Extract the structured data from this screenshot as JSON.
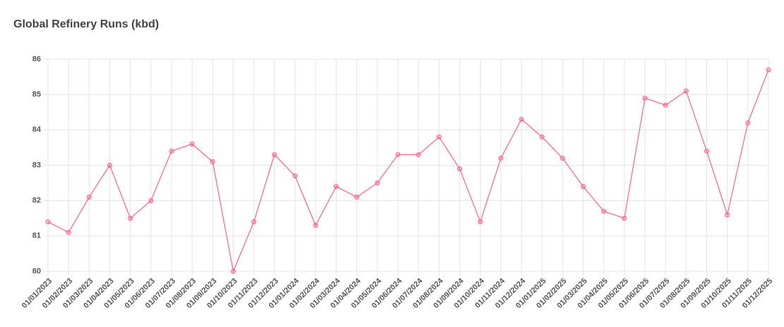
{
  "chart_data": {
    "type": "line",
    "title": "Global Refinery Runs (kbd)",
    "categories": [
      "01/01/2023",
      "01/02/2023",
      "01/03/2023",
      "01/04/2023",
      "01/05/2023",
      "01/06/2023",
      "01/07/2023",
      "01/08/2023",
      "01/09/2023",
      "01/10/2023",
      "01/11/2023",
      "01/12/2023",
      "01/01/2024",
      "01/02/2024",
      "01/03/2024",
      "01/04/2024",
      "01/05/2024",
      "01/06/2024",
      "01/07/2024",
      "01/08/2024",
      "01/09/2024",
      "01/10/2024",
      "01/11/2024",
      "01/12/2024",
      "01/01/2025",
      "01/02/2025",
      "01/03/2025",
      "01/04/2025",
      "01/05/2025",
      "01/06/2025",
      "01/07/2025",
      "01/08/2025",
      "01/09/2025",
      "01/10/2025",
      "01/11/2025",
      "01/12/2025"
    ],
    "values": [
      81.4,
      81.1,
      82.1,
      83.0,
      81.5,
      82.0,
      83.4,
      83.6,
      83.1,
      80.0,
      81.4,
      83.3,
      82.7,
      81.3,
      82.4,
      82.1,
      82.5,
      83.3,
      83.3,
      83.8,
      82.9,
      81.4,
      83.2,
      84.3,
      83.8,
      83.2,
      82.4,
      81.7,
      81.5,
      84.9,
      84.7,
      85.1,
      83.4,
      81.6,
      84.2,
      85.7
    ],
    "color": "#ff6384",
    "ylim": [
      80,
      86
    ],
    "yticks": [
      80,
      81,
      82,
      83,
      84,
      85,
      86
    ],
    "grid": true
  }
}
